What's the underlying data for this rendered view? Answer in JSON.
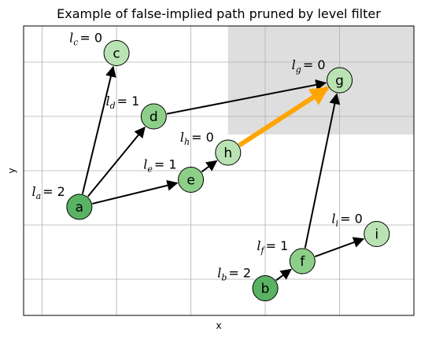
{
  "title": "Example of false-implied path pruned by level filter",
  "xlabel": "x",
  "ylabel": "y",
  "colors": {
    "level0": "#b9e3b3",
    "level1": "#8dcf88",
    "level2": "#59b362",
    "edge": "#000000",
    "pruned_edge": "#ffa500",
    "pruned_region": "#dedede",
    "grid": "#b0b0b0"
  },
  "chart_data": {
    "type": "graph",
    "grid": true,
    "nodes": [
      {
        "id": "a",
        "label": "a",
        "level": 2,
        "level_text": "= 2",
        "x": 1.0,
        "y": 3.0
      },
      {
        "id": "b",
        "label": "b",
        "level": 2,
        "level_text": "= 2",
        "x": 6.0,
        "y": 0.75
      },
      {
        "id": "c",
        "label": "c",
        "level": 0,
        "level_text": "= 0",
        "x": 2.0,
        "y": 7.25
      },
      {
        "id": "d",
        "label": "d",
        "level": 1,
        "level_text": "= 1",
        "x": 3.0,
        "y": 5.5
      },
      {
        "id": "e",
        "label": "e",
        "level": 1,
        "level_text": "= 1",
        "x": 4.0,
        "y": 3.75
      },
      {
        "id": "f",
        "label": "f",
        "level": 1,
        "level_text": "= 1",
        "x": 7.0,
        "y": 1.5
      },
      {
        "id": "g",
        "label": "g",
        "level": 0,
        "level_text": "= 0",
        "x": 8.0,
        "y": 6.5
      },
      {
        "id": "h",
        "label": "h",
        "level": 0,
        "level_text": "= 0",
        "x": 5.0,
        "y": 4.5
      },
      {
        "id": "i",
        "label": "i",
        "level": 0,
        "level_text": "= 0",
        "x": 9.0,
        "y": 2.25
      }
    ],
    "edges": [
      {
        "from": "a",
        "to": "c",
        "pruned": false
      },
      {
        "from": "a",
        "to": "d",
        "pruned": false
      },
      {
        "from": "a",
        "to": "e",
        "pruned": false
      },
      {
        "from": "d",
        "to": "g",
        "pruned": false
      },
      {
        "from": "e",
        "to": "h",
        "pruned": false
      },
      {
        "from": "h",
        "to": "g",
        "pruned": true
      },
      {
        "from": "b",
        "to": "f",
        "pruned": false
      },
      {
        "from": "f",
        "to": "g",
        "pruned": false
      },
      {
        "from": "f",
        "to": "i",
        "pruned": false
      }
    ],
    "pruned_region": {
      "x": [
        5.0,
        10.0
      ],
      "y": [
        5.0,
        8.0
      ]
    },
    "xlim": [
      -0.5,
      10.0
    ],
    "ylim": [
      0.0,
      8.0
    ],
    "xgrid": [
      0.0,
      2.0,
      4.0,
      6.0,
      8.0
    ],
    "ygrid": [
      1.0,
      2.5,
      4.0,
      5.5,
      7.0
    ]
  }
}
